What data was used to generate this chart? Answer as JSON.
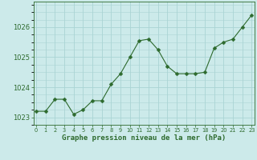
{
  "hours": [
    0,
    1,
    2,
    3,
    4,
    5,
    6,
    7,
    8,
    9,
    10,
    11,
    12,
    13,
    14,
    15,
    16,
    17,
    18,
    19,
    20,
    21,
    22,
    23
  ],
  "pressure": [
    1023.2,
    1023.2,
    1023.6,
    1023.6,
    1023.1,
    1023.25,
    1023.55,
    1023.55,
    1024.1,
    1024.45,
    1025.0,
    1025.55,
    1025.6,
    1025.25,
    1024.7,
    1024.45,
    1024.45,
    1024.45,
    1024.5,
    1025.3,
    1025.5,
    1025.6,
    1026.0,
    1026.4
  ],
  "line_color": "#2d6a2d",
  "marker": "D",
  "marker_size": 2.5,
  "bg_color": "#cceaea",
  "grid_color": "#aad4d4",
  "tick_label_color": "#2d6a2d",
  "xlabel": "Graphe pression niveau de la mer (hPa)",
  "xlabel_color": "#2d6a2d",
  "ylim_min": 1022.75,
  "ylim_max": 1026.85,
  "yticks": [
    1023,
    1024,
    1025,
    1026
  ],
  "xticks": [
    0,
    1,
    2,
    3,
    4,
    5,
    6,
    7,
    8,
    9,
    10,
    11,
    12,
    13,
    14,
    15,
    16,
    17,
    18,
    19,
    20,
    21,
    22,
    23
  ]
}
